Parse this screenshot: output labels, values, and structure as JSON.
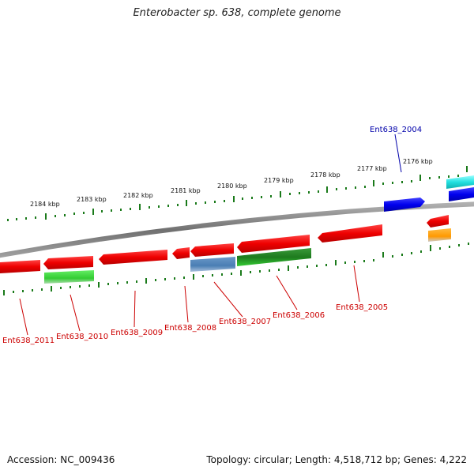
{
  "title": "Enterobacter sp. 638, complete genome",
  "footer": {
    "accession": "Accession: NC_009436",
    "topology": "Topology: circular; Length: 4,518,712 bp; Genes: 4,222"
  },
  "colors": {
    "background": "#ffffff",
    "backbone": "#8a8a8a",
    "scale_ticks": "#1a7a1a",
    "label_red": "#cc0000",
    "label_blue": "#0000aa",
    "gene_red": "#ee1111",
    "gene_green": "#33cc33",
    "gene_steelblue": "#4f82b8",
    "gene_blue": "#0000ee",
    "gene_cyan": "#22e0e0",
    "gene_orange": "#ff9900"
  },
  "scale": {
    "unit": "kbp",
    "tick_labels": [
      "2184 kbp",
      "2183 kbp",
      "2182 kbp",
      "2181 kbp",
      "2180 kbp",
      "2179 kbp",
      "2178 kbp",
      "2177 kbp",
      "2176 kbp"
    ]
  },
  "genes": [
    {
      "name": "Ent638_2011",
      "strand": "reverse",
      "color": "red"
    },
    {
      "name": "Ent638_2010",
      "strand": "reverse",
      "color": "red"
    },
    {
      "name": "Ent638_2009",
      "strand": "reverse",
      "color": "red"
    },
    {
      "name": "Ent638_2008",
      "strand": "reverse",
      "color": "red"
    },
    {
      "name": "Ent638_2007",
      "strand": "reverse",
      "color": "red"
    },
    {
      "name": "Ent638_2006",
      "strand": "reverse",
      "color": "red"
    },
    {
      "name": "Ent638_2005",
      "strand": "reverse",
      "color": "red"
    },
    {
      "name": "Ent638_2004",
      "strand": "forward",
      "color": "blue"
    }
  ]
}
